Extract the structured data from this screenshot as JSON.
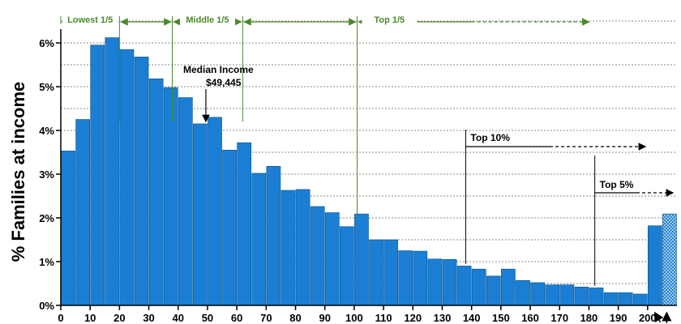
{
  "chart_data": {
    "type": "bar",
    "ylabel": "% Families at income",
    "xlabel": "",
    "ylim": [
      0,
      6.5
    ],
    "y_ticks": [
      0,
      1,
      2,
      3,
      4,
      5,
      6
    ],
    "y_tick_labels": [
      "0%",
      "1%",
      "2%",
      "3%",
      "4%",
      "5%",
      "6%"
    ],
    "x_tick_labels": [
      "0",
      "10",
      "20",
      "30",
      "40",
      "50",
      "60",
      "70",
      "80",
      "90",
      "100",
      "110",
      "120",
      "130",
      "140",
      "150",
      "160",
      "170",
      "180",
      "190",
      "200"
    ],
    "grid": "horizontal dotted",
    "bar_color": "#1a7fd4",
    "categories": [
      "0-5",
      "5-10",
      "10-15",
      "15-20",
      "20-25",
      "25-30",
      "30-35",
      "35-40",
      "40-45",
      "45-50",
      "50-55",
      "55-60",
      "60-65",
      "65-70",
      "70-75",
      "75-80",
      "80-85",
      "85-90",
      "90-95",
      "95-100",
      "100-105",
      "105-110",
      "110-115",
      "115-120",
      "120-125",
      "125-130",
      "130-135",
      "135-140",
      "140-145",
      "145-150",
      "150-155",
      "155-160",
      "160-165",
      "165-170",
      "170-175",
      "175-180",
      "180-185",
      "185-190",
      "190-195",
      "195-200",
      "200-250",
      "250+"
    ],
    "values": [
      3.53,
      4.25,
      5.95,
      6.12,
      5.85,
      5.68,
      5.18,
      4.98,
      4.75,
      4.15,
      4.3,
      3.55,
      3.72,
      3.02,
      3.18,
      2.63,
      2.65,
      2.26,
      2.12,
      1.8,
      2.09,
      1.5,
      1.5,
      1.25,
      1.24,
      1.06,
      1.05,
      0.9,
      0.83,
      0.67,
      0.83,
      0.57,
      0.52,
      0.47,
      0.47,
      0.42,
      0.4,
      0.29,
      0.29,
      0.26,
      1.82,
      2.09
    ],
    "last_bar_pattern": "hatched",
    "annotations": {
      "median_line1": "Median Income",
      "median_line2": "$49,445",
      "median_x": 49.445,
      "top10": "Top 10%",
      "top10_x": 138,
      "top5": "Top 5%",
      "top5_x": 182
    },
    "quintiles": [
      {
        "label": "Lowest 1/5",
        "from": 0,
        "to": 20
      },
      {
        "label": "",
        "from": 20,
        "to": 38
      },
      {
        "label": "Middle 1/5",
        "from": 38,
        "to": 62
      },
      {
        "label": "",
        "from": 62,
        "to": 101
      },
      {
        "label": "Top 1/5",
        "from": 101,
        "to": 180
      }
    ]
  }
}
